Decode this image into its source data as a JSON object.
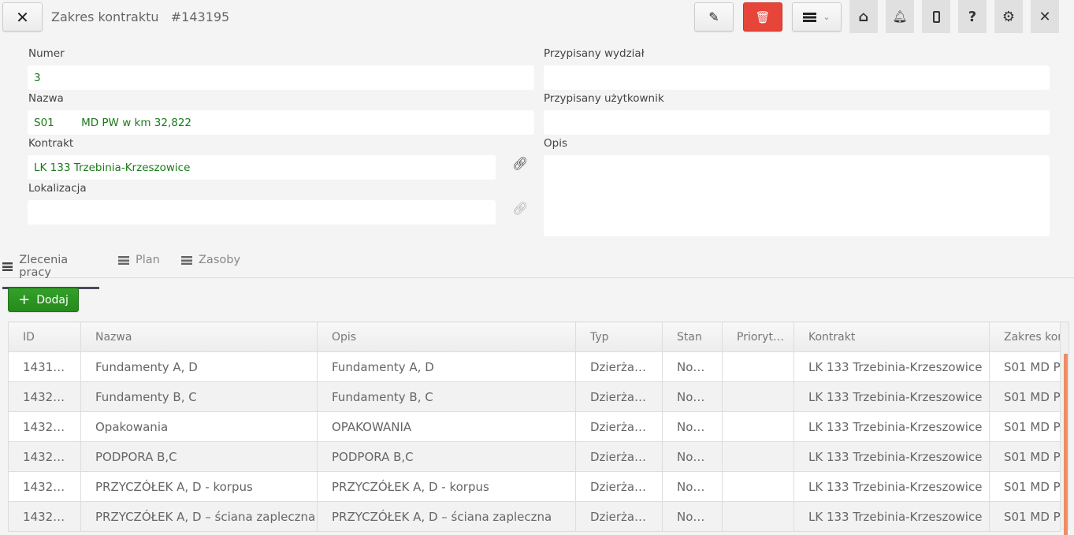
{
  "header": {
    "title": "Zakres kontraktu",
    "id": "#143195"
  },
  "colors": {
    "delete": "#e8453a",
    "add": "#2e8b1e",
    "value_text": "#1a7a1a",
    "scrollbar": "#ef8c64"
  },
  "form": {
    "numer": {
      "label": "Numer",
      "value": "3"
    },
    "nazwa": {
      "label": "Nazwa",
      "value": "S01        MD PW w km 32,822"
    },
    "kontrakt": {
      "label": "Kontrakt",
      "value": "LK 133 Trzebinia-Krzeszowice"
    },
    "lokalizacja": {
      "label": "Lokalizacja",
      "value": ""
    },
    "wydzial": {
      "label": "Przypisany wydział",
      "value": ""
    },
    "uzytkownik": {
      "label": "Przypisany użytkownik",
      "value": ""
    },
    "opis": {
      "label": "Opis",
      "value": ""
    }
  },
  "tabs": [
    {
      "label": "Zlecenia pracy",
      "active": true
    },
    {
      "label": "Plan"
    },
    {
      "label": "Zasoby"
    }
  ],
  "add_label": "Dodaj",
  "table": {
    "columns": [
      "ID",
      "Nazwa",
      "Opis",
      "Typ",
      "Stan",
      "Prioryt…",
      "Kontrakt",
      "Zakres kon"
    ],
    "rows": [
      [
        "1431…",
        "Fundamenty A, D",
        "Fundamenty A, D",
        "Dzierża…",
        "No…",
        "",
        "LK 133 Trzebinia-Krzeszowice",
        "S01 MD P"
      ],
      [
        "1432…",
        "Fundamenty B, C",
        "Fundamenty B, C",
        "Dzierża…",
        "No…",
        "",
        "LK 133 Trzebinia-Krzeszowice",
        "S01 MD P"
      ],
      [
        "1432…",
        "Opakowania",
        "OPAKOWANIA",
        "Dzierża…",
        "No…",
        "",
        "LK 133 Trzebinia-Krzeszowice",
        "S01 MD P"
      ],
      [
        "1432…",
        "PODPORA B,C",
        "PODPORA B,C",
        "Dzierża…",
        "No…",
        "",
        "LK 133 Trzebinia-Krzeszowice",
        "S01 MD P"
      ],
      [
        "1432…",
        "PRZYCZÓŁEK A, D - korpus",
        "PRZYCZÓŁEK A, D - korpus",
        "Dzierża…",
        "No…",
        "",
        "LK 133 Trzebinia-Krzeszowice",
        "S01 MD P"
      ],
      [
        "1432…",
        "PRZYCZÓŁEK A, D – ściana zapleczna",
        "PRZYCZÓŁEK A, D – ściana zapleczna",
        "Dzierża…",
        "No…",
        "",
        "LK 133 Trzebinia-Krzeszowice",
        "S01 MD P"
      ]
    ]
  }
}
